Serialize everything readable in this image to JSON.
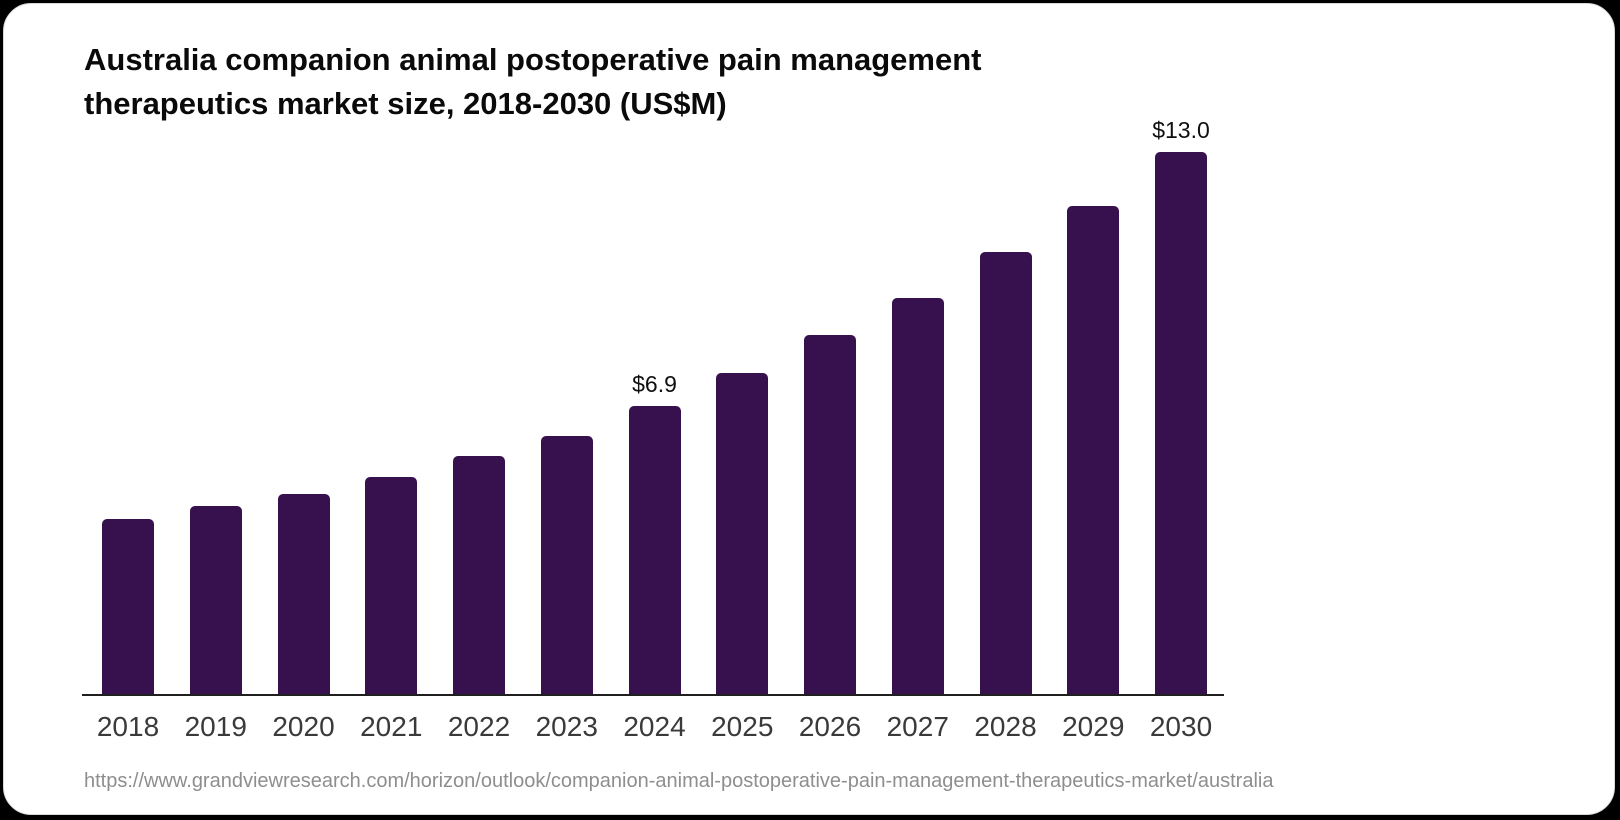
{
  "card": {
    "title": {
      "full": "Australia companion animal postoperative pain management therapeutics market size, 2018-2030 (US$M)",
      "line1": "Australia companion animal postoperative pain management",
      "line2": "therapeutics market size, 2018-2030 (US$M)"
    },
    "source_url": "https://www.grandviewresearch.com/horizon/outlook/companion-animal-postoperative-pain-management-therapeutics-market/australia"
  },
  "chart_data": {
    "type": "bar",
    "title": "Australia companion animal postoperative pain management therapeutics market size, 2018-2030 (US$M)",
    "unit": "US$M",
    "categories": [
      "2018",
      "2019",
      "2020",
      "2021",
      "2022",
      "2023",
      "2024",
      "2025",
      "2026",
      "2027",
      "2028",
      "2029",
      "2030"
    ],
    "values": [
      4.2,
      4.5,
      4.8,
      5.2,
      5.7,
      6.2,
      6.9,
      7.7,
      8.6,
      9.5,
      10.6,
      11.7,
      13.0
    ],
    "data_labels": [
      {
        "category": "2024",
        "text": "$6.9"
      },
      {
        "category": "2030",
        "text": "$13.0"
      }
    ],
    "xlabel": "",
    "ylabel": "",
    "ylim": [
      0,
      13.0
    ],
    "grid": false,
    "legend": false,
    "bar_color": "#36114E",
    "axis_line_color": "#1f1f1f",
    "label_color": "#3a3a3a",
    "background_color": "#ffffff"
  }
}
